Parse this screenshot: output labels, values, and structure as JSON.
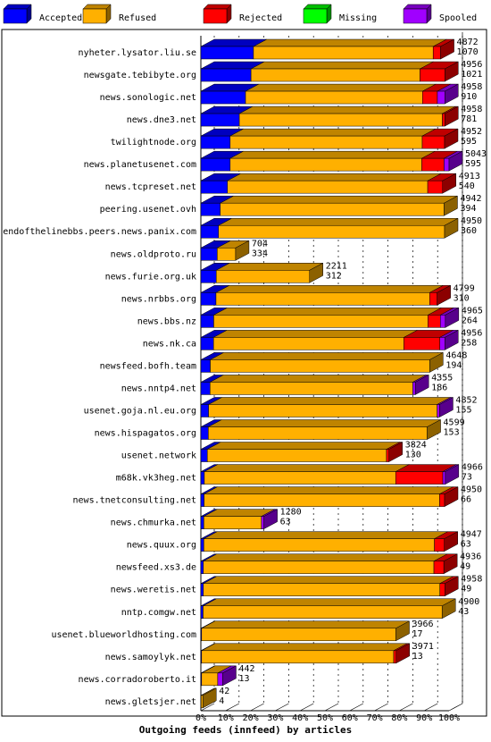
{
  "chart_data": {
    "type": "bar3d-stacked-horizontal",
    "title": "Outgoing feeds (innfeed) by articles",
    "categories": [
      "nyheter.lysator.liu.se",
      "newsgate.tebibyte.org",
      "news.sonologic.net",
      "news.dne3.net",
      "twilightnode.org",
      "news.planetusenet.com",
      "news.tcpreset.net",
      "peering.usenet.ovh",
      "endofthelinebbs.peers.news.panix.com",
      "news.oldproto.ru",
      "news.furie.org.uk",
      "news.nrbbs.org",
      "news.bbs.nz",
      "news.nk.ca",
      "newsfeed.bofh.team",
      "news.nntp4.net",
      "usenet.goja.nl.eu.org",
      "news.hispagatos.org",
      "usenet.network",
      "m68k.vk3heg.net",
      "news.tnetconsulting.net",
      "news.chmurka.net",
      "news.quux.org",
      "newsfeed.xs3.de",
      "news.weretis.net",
      "nntp.comgw.net",
      "usenet.blueworldhosting.com",
      "news.samoylyk.net",
      "news.corradoroberto.it",
      "news.gletsjer.net"
    ],
    "series": [
      {
        "name": "Accepted",
        "color": "#0000ff",
        "values": [
          21.2,
          20.2,
          18.0,
          15.5,
          11.8,
          11.8,
          10.7,
          7.8,
          7.1,
          6.6,
          6.2,
          6.1,
          5.2,
          5.1,
          3.8,
          3.7,
          3.1,
          3.0,
          2.6,
          1.4,
          1.3,
          1.2,
          1.2,
          1.0,
          1.0,
          0.9,
          0.3,
          0.3,
          0.3,
          0.1
        ]
      },
      {
        "name": "Refused",
        "color": "#ffb000",
        "values": [
          72.4,
          68.1,
          71.3,
          81.8,
          77.4,
          77.2,
          80.7,
          90.2,
          91.1,
          7.4,
          37.6,
          86.1,
          86.3,
          76.7,
          88.4,
          81.7,
          92.1,
          88.2,
          72.2,
          77.1,
          94.9,
          23.2,
          92.9,
          92.9,
          95.3,
          96.3,
          78.3,
          77.4,
          6.5,
          0.7
        ]
      },
      {
        "name": "Rejected",
        "color": "#ff0000",
        "values": [
          3,
          10,
          6,
          1,
          9,
          9,
          6,
          0,
          0,
          0,
          0,
          3,
          5,
          14.5,
          0,
          0,
          0,
          0,
          1,
          19,
          2,
          0,
          4,
          4,
          2,
          0,
          0,
          1,
          0,
          0
        ]
      },
      {
        "name": "Missing",
        "color": "#00ff00",
        "values": [
          0,
          0,
          0,
          0,
          0,
          0,
          0,
          0,
          0,
          0,
          0,
          0,
          0,
          0,
          0,
          0,
          0,
          0,
          0,
          0,
          0,
          0,
          0,
          0,
          0,
          0,
          0,
          0,
          0,
          0
        ]
      },
      {
        "name": "Spooled",
        "color": "#a000ff",
        "values": [
          0,
          0,
          3,
          0,
          0,
          2,
          0,
          0,
          0,
          0,
          0,
          0,
          2,
          2,
          0,
          1,
          1,
          0,
          0,
          1,
          0,
          1,
          0,
          0,
          0,
          0,
          0,
          0,
          2,
          0
        ]
      }
    ],
    "annotations": [
      [
        4872,
        1070
      ],
      [
        4956,
        1021
      ],
      [
        4958,
        910
      ],
      [
        4958,
        781
      ],
      [
        4952,
        595
      ],
      [
        5043,
        595
      ],
      [
        4913,
        540
      ],
      [
        4942,
        394
      ],
      [
        4950,
        360
      ],
      [
        704,
        334
      ],
      [
        2211,
        312
      ],
      [
        4799,
        310
      ],
      [
        4965,
        264
      ],
      [
        4956,
        258
      ],
      [
        4648,
        194
      ],
      [
        4355,
        186
      ],
      [
        4852,
        155
      ],
      [
        4599,
        153
      ],
      [
        3824,
        130
      ],
      [
        4966,
        73
      ],
      [
        4950,
        66
      ],
      [
        1280,
        63
      ],
      [
        4947,
        63
      ],
      [
        4936,
        49
      ],
      [
        4958,
        49
      ],
      [
        4900,
        43
      ],
      [
        3966,
        17
      ],
      [
        3971,
        13
      ],
      [
        442,
        13
      ],
      [
        42,
        4
      ]
    ],
    "xlim": [
      0,
      100
    ],
    "xticks": [
      {
        "value": 0,
        "label": "0%"
      },
      {
        "value": 10,
        "label": "10%"
      },
      {
        "value": 20,
        "label": "20%"
      },
      {
        "value": 30,
        "label": "30%"
      },
      {
        "value": 40,
        "label": "40%"
      },
      {
        "value": 50,
        "label": "50%"
      },
      {
        "value": 60,
        "label": "60%"
      },
      {
        "value": 70,
        "label": "70%"
      },
      {
        "value": 80,
        "label": "80%"
      },
      {
        "value": 90,
        "label": "90%"
      },
      {
        "value": 100,
        "label": "100%"
      }
    ],
    "grid": true
  }
}
